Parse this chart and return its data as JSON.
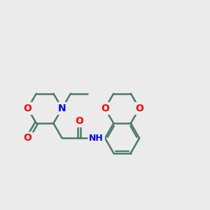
{
  "bg_color": "#ebebeb",
  "bond_color": "#4a7a6a",
  "N_color": "#0000ff",
  "O_color": "#ff0000",
  "line_width": 1.8,
  "font_size_atom": 10,
  "fig_size": [
    3.0,
    3.0
  ],
  "dpi": 100,
  "xlim": [
    0,
    12
  ],
  "ylim": [
    0,
    12
  ]
}
